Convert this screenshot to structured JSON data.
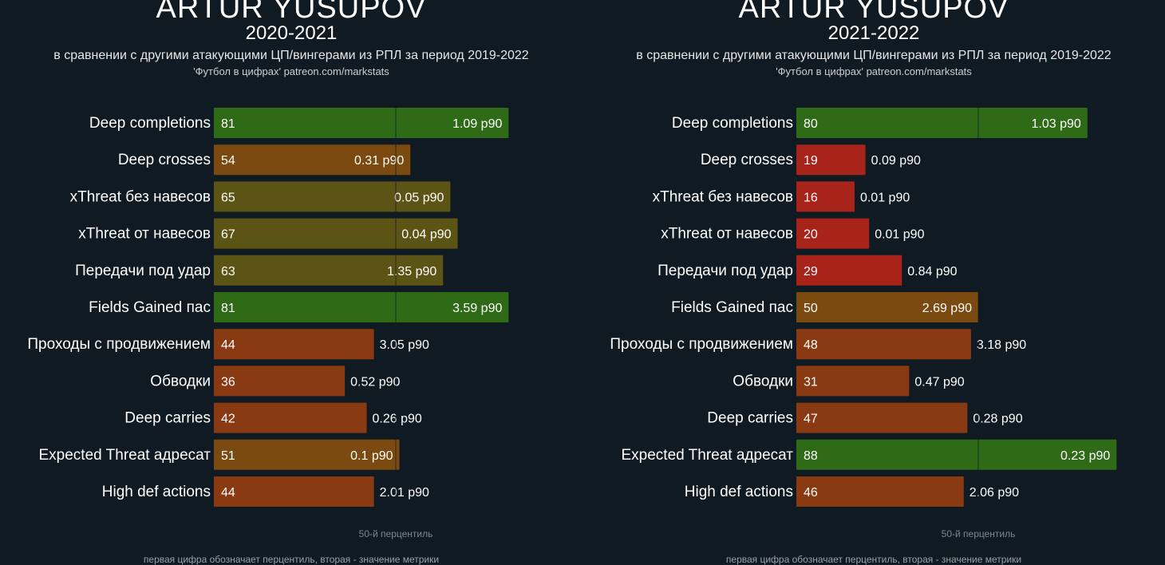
{
  "colors": {
    "background": "#101a22",
    "high": "#2f6a16",
    "above_mid": "#5c5414",
    "mid": "#7a4a10",
    "low": "#8a3a12",
    "very_low": "#a8231a",
    "median_line": "#101a22"
  },
  "chart_data": [
    {
      "type": "bar",
      "title": "ARTUR YUSUPOV",
      "season": "2020-2021",
      "subtitle": "в сравнении с другими атакующими ЦП/вингерами из РПЛ за период 2019-2022",
      "source": "'Футбол в цифрах' patreon.com/markstats",
      "median_label": "50-й перцентиль",
      "footnote": "первая цифра обозначает перцентиль, вторая - значение метрики",
      "xlim": [
        0,
        100
      ],
      "categories": [
        "Deep completions",
        "Deep crosses",
        "xThreat без навесов",
        "xThreat от навесов",
        "Передачи под удар",
        "Fields Gained пас",
        "Проходы с продвижением",
        "Обводки",
        "Deep carries",
        "Expected Threat адресат",
        "High def actions"
      ],
      "percentiles": [
        81,
        54,
        65,
        67,
        63,
        81,
        44,
        36,
        42,
        51,
        44
      ],
      "values": [
        "1.09 p90",
        "0.31 p90",
        "0.05 p90",
        "0.04 p90",
        "1.35 p90",
        "3.59 p90",
        "3.05 p90",
        "0.52 p90",
        "0.26 p90",
        "0.1 p90",
        "2.01 p90"
      ]
    },
    {
      "type": "bar",
      "title": "ARTUR YUSUPOV",
      "season": "2021-2022",
      "subtitle": "в сравнении с другими атакующими ЦП/вингерами из РПЛ за период 2019-2022",
      "source": "'Футбол в цифрах' patreon.com/markstats",
      "median_label": "50-й перцентиль",
      "footnote": "первая цифра обозначает перцентиль, вторая - значение метрики",
      "xlim": [
        0,
        100
      ],
      "categories": [
        "Deep completions",
        "Deep crosses",
        "xThreat без навесов",
        "xThreat от навесов",
        "Передачи под удар",
        "Fields Gained пас",
        "Проходы с продвижением",
        "Обводки",
        "Deep carries",
        "Expected Threat адресат",
        "High def actions"
      ],
      "percentiles": [
        80,
        19,
        16,
        20,
        29,
        50,
        48,
        31,
        47,
        88,
        46
      ],
      "values": [
        "1.03 p90",
        "0.09 p90",
        "0.01 p90",
        "0.01 p90",
        "0.84 p90",
        "2.69 p90",
        "3.18 p90",
        "0.47 p90",
        "0.28 p90",
        "0.23 p90",
        "2.06 p90"
      ]
    }
  ]
}
